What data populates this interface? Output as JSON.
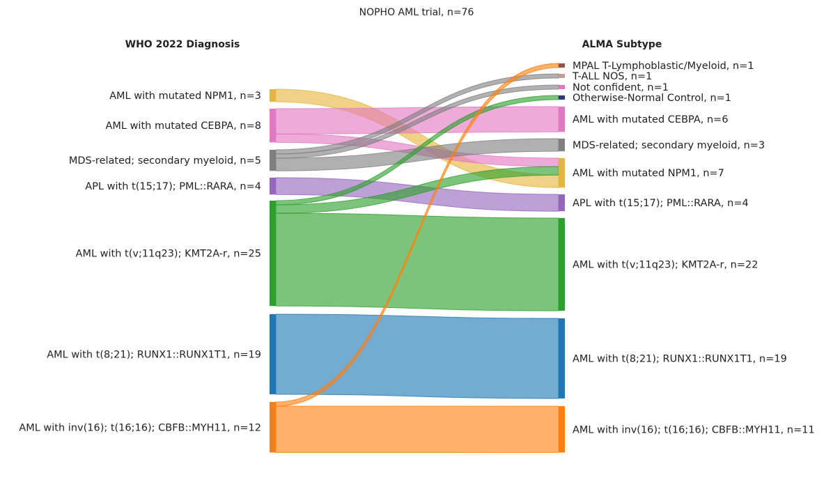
{
  "chart_data": {
    "type": "sankey",
    "title": "NOPHO AML trial, n=76",
    "left_header": "WHO 2022 Diagnosis",
    "right_header": "ALMA Subtype",
    "left_nodes": [
      {
        "id": "npm1",
        "label": "AML with mutated NPM1, n=3",
        "n": 3,
        "color": "#e5b63d"
      },
      {
        "id": "cebpa",
        "label": "AML with mutated CEBPA, n=8",
        "n": 8,
        "color": "#e377c2"
      },
      {
        "id": "mds",
        "label": "MDS-related; secondary myeloid, n=5",
        "n": 5,
        "color": "#7f7f7f"
      },
      {
        "id": "apl",
        "label": "APL with t(15;17); PML::RARA, n=4",
        "n": 4,
        "color": "#9467bd"
      },
      {
        "id": "kmt2a",
        "label": "AML with t(v;11q23); KMT2A-r, n=25",
        "n": 25,
        "color": "#2ca02c"
      },
      {
        "id": "runx1",
        "label": "AML with t(8;21); RUNX1::RUNX1T1, n=19",
        "n": 19,
        "color": "#1f77b4"
      },
      {
        "id": "cbfb",
        "label": "AML with inv(16); t(16;16); CBFB::MYH11, n=12",
        "n": 12,
        "color": "#ff7f0e"
      }
    ],
    "right_nodes": [
      {
        "id": "mpal",
        "label": "MPAL T-Lymphoblastic/Myeloid, n=1",
        "n": 1,
        "color": "#8c564b"
      },
      {
        "id": "tall",
        "label": "T-ALL NOS, n=1",
        "n": 1,
        "color": "#c49c94"
      },
      {
        "id": "notconf",
        "label": "Not confident, n=1",
        "n": 1,
        "color": "#e377c2"
      },
      {
        "id": "normal",
        "label": "Otherwise-Normal Control, n=1",
        "n": 1,
        "color": "#2b3a7a"
      },
      {
        "id": "cebpa",
        "label": "AML with mutated CEBPA, n=6",
        "n": 6,
        "color": "#e377c2"
      },
      {
        "id": "mds",
        "label": "MDS-related; secondary myeloid, n=3",
        "n": 3,
        "color": "#7f7f7f"
      },
      {
        "id": "npm1",
        "label": "AML with mutated NPM1, n=7",
        "n": 7,
        "color": "#e5b63d"
      },
      {
        "id": "apl",
        "label": "APL with t(15;17); PML::RARA, n=4",
        "n": 4,
        "color": "#9467bd"
      },
      {
        "id": "kmt2a",
        "label": "AML with t(v;11q23); KMT2A-r, n=22",
        "n": 22,
        "color": "#2ca02c"
      },
      {
        "id": "runx1",
        "label": "AML with t(8;21); RUNX1::RUNX1T1, n=19",
        "n": 19,
        "color": "#1f77b4"
      },
      {
        "id": "cbfb",
        "label": "AML with inv(16); t(16;16); CBFB::MYH11, n=11",
        "n": 11,
        "color": "#ff7f0e"
      }
    ],
    "flows": [
      {
        "from": "npm1",
        "to": "npm1",
        "n": 3
      },
      {
        "from": "cebpa",
        "to": "cebpa",
        "n": 6
      },
      {
        "from": "cebpa",
        "to": "npm1",
        "n": 2
      },
      {
        "from": "mds",
        "to": "tall",
        "n": 1
      },
      {
        "from": "mds",
        "to": "notconf",
        "n": 1
      },
      {
        "from": "mds",
        "to": "mds",
        "n": 3
      },
      {
        "from": "apl",
        "to": "apl",
        "n": 4
      },
      {
        "from": "kmt2a",
        "to": "normal",
        "n": 1
      },
      {
        "from": "kmt2a",
        "to": "npm1",
        "n": 2
      },
      {
        "from": "kmt2a",
        "to": "kmt2a",
        "n": 22
      },
      {
        "from": "runx1",
        "to": "runx1",
        "n": 19
      },
      {
        "from": "cbfb",
        "to": "mpal",
        "n": 1
      },
      {
        "from": "cbfb",
        "to": "cbfb",
        "n": 11
      }
    ]
  }
}
